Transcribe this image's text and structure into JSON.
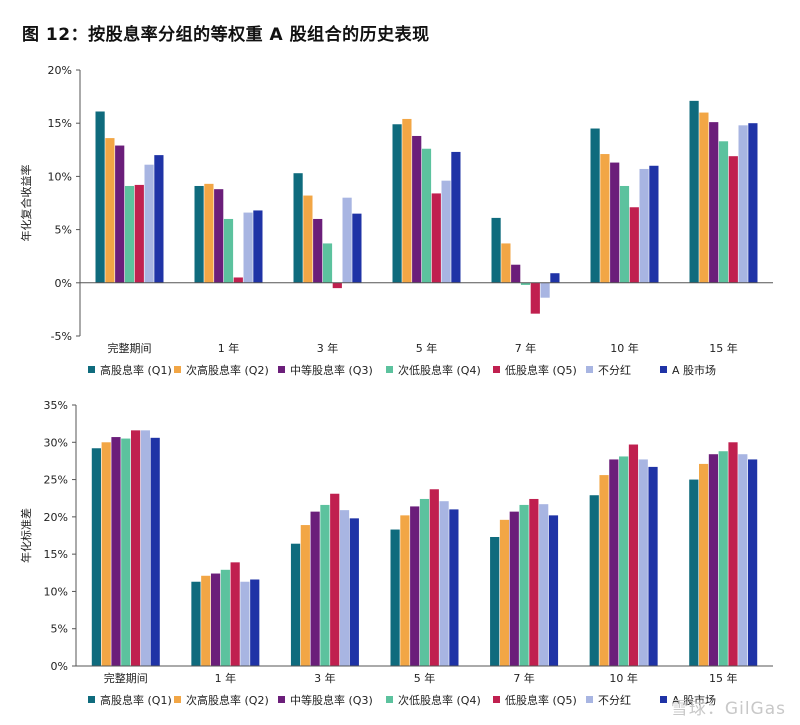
{
  "figure": {
    "title": "图 12：按股息率分组的等权重 A 股组合的历史表现",
    "watermark": "雪球：GilGas"
  },
  "colors": {
    "series": [
      "#0f6b7d",
      "#f2a645",
      "#6b1e7a",
      "#5cc29e",
      "#c0204f",
      "#a8b5e2",
      "#1f33a6"
    ],
    "axis": "#555555",
    "grid": "#d9d9d9"
  },
  "chart_data": [
    {
      "type": "bar",
      "title": "",
      "xlabel": "",
      "ylabel": "年化复合收益率",
      "ylim": [
        -5,
        20
      ],
      "yticks": [
        -5,
        0,
        5,
        10,
        15,
        20
      ],
      "ytick_labels": [
        "-5%",
        "0%",
        "5%",
        "10%",
        "15%",
        "20%"
      ],
      "categories": [
        "完整期间",
        "1 年",
        "3 年",
        "5 年",
        "7 年",
        "10 年",
        "15 年"
      ],
      "legend_position": "bottom",
      "series": [
        {
          "name": "高股息率 (Q1)",
          "values": [
            16.1,
            9.1,
            10.3,
            14.9,
            6.1,
            14.5,
            17.1
          ]
        },
        {
          "name": "次高股息率 (Q2)",
          "values": [
            13.6,
            9.3,
            8.2,
            15.4,
            3.7,
            12.1,
            16.0
          ]
        },
        {
          "name": "中等股息率 (Q3)",
          "values": [
            12.9,
            8.8,
            6.0,
            13.8,
            1.7,
            11.3,
            15.1
          ]
        },
        {
          "name": "次低股息率 (Q4)",
          "values": [
            9.1,
            6.0,
            3.7,
            12.6,
            -0.2,
            9.1,
            13.3
          ]
        },
        {
          "name": "低股息率 (Q5)",
          "values": [
            9.2,
            0.5,
            -0.5,
            8.4,
            -2.9,
            7.1,
            11.9
          ]
        },
        {
          "name": "不分红",
          "values": [
            11.1,
            6.6,
            8.0,
            9.6,
            -1.4,
            10.7,
            14.8
          ]
        },
        {
          "name": "A 股市场",
          "values": [
            12.0,
            6.8,
            6.5,
            12.3,
            0.9,
            11.0,
            15.0
          ]
        }
      ]
    },
    {
      "type": "bar",
      "title": "",
      "xlabel": "",
      "ylabel": "年化标准差",
      "ylim": [
        0,
        35
      ],
      "yticks": [
        0,
        5,
        10,
        15,
        20,
        25,
        30,
        35
      ],
      "ytick_labels": [
        "0%",
        "5%",
        "10%",
        "15%",
        "20%",
        "25%",
        "30%",
        "35%"
      ],
      "categories": [
        "完整期间",
        "1 年",
        "3 年",
        "5 年",
        "7 年",
        "10 年",
        "15 年"
      ],
      "legend_position": "bottom",
      "series": [
        {
          "name": "高股息率 (Q1)",
          "values": [
            29.2,
            11.3,
            16.4,
            18.3,
            17.3,
            22.9,
            25.0
          ]
        },
        {
          "name": "次高股息率 (Q2)",
          "values": [
            30.0,
            12.1,
            18.9,
            20.2,
            19.6,
            25.6,
            27.1
          ]
        },
        {
          "name": "中等股息率 (Q3)",
          "values": [
            30.7,
            12.4,
            20.7,
            21.4,
            20.7,
            27.7,
            28.4
          ]
        },
        {
          "name": "次低股息率 (Q4)",
          "values": [
            30.5,
            12.9,
            21.6,
            22.4,
            21.6,
            28.1,
            28.8
          ]
        },
        {
          "name": "低股息率 (Q5)",
          "values": [
            31.6,
            13.9,
            23.1,
            23.7,
            22.4,
            29.7,
            30.0
          ]
        },
        {
          "name": "不分红",
          "values": [
            31.6,
            11.3,
            20.9,
            22.1,
            21.7,
            27.7,
            28.4
          ]
        },
        {
          "name": "A 股市场",
          "values": [
            30.6,
            11.6,
            19.8,
            21.0,
            20.2,
            26.7,
            27.7
          ]
        }
      ]
    }
  ]
}
